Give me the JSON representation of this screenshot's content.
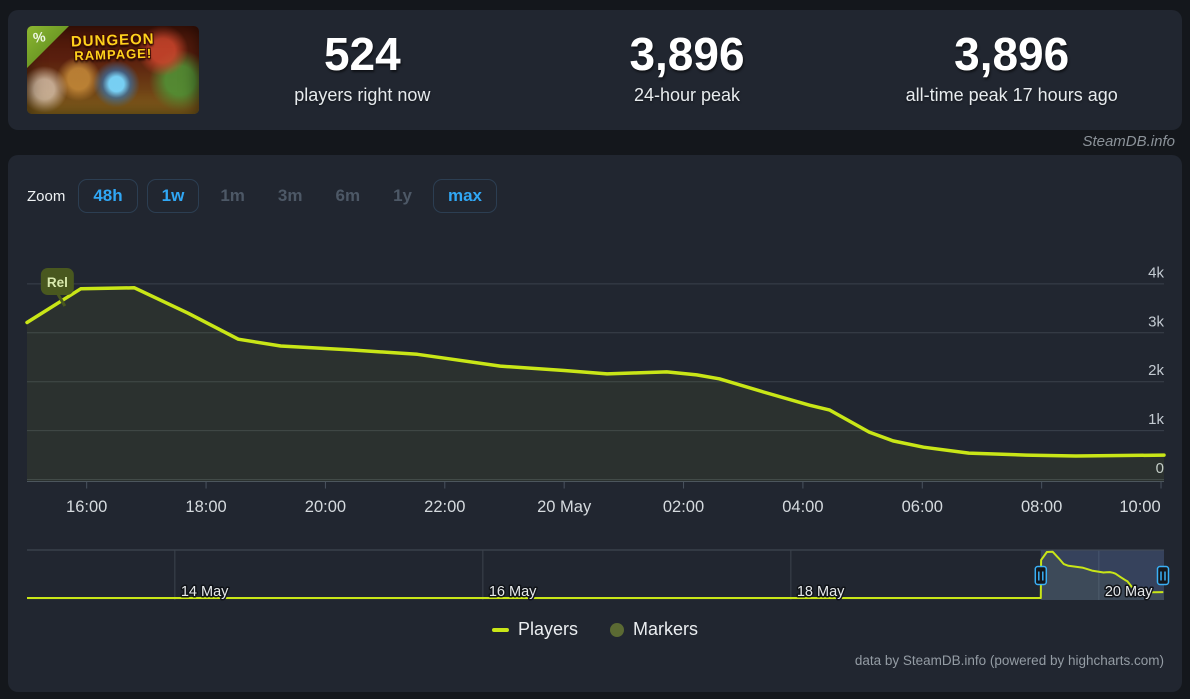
{
  "header": {
    "banner": {
      "title_line1": "DUNGEON",
      "title_line2": "RAMPAGE!",
      "corner_icon": "percent-icon",
      "corner_icon_glyph": "%"
    },
    "stats": [
      {
        "value": "524",
        "label": "players right now"
      },
      {
        "value": "3,896",
        "label": "24-hour peak"
      },
      {
        "value": "3,896",
        "label": "all-time peak 17 hours ago"
      }
    ]
  },
  "watermark": "SteamDB.info",
  "zoom": {
    "label": "Zoom",
    "buttons": [
      {
        "label": "48h",
        "enabled": true
      },
      {
        "label": "1w",
        "enabled": true
      },
      {
        "label": "1m",
        "enabled": false
      },
      {
        "label": "3m",
        "enabled": false
      },
      {
        "label": "6m",
        "enabled": false
      },
      {
        "label": "1y",
        "enabled": false
      },
      {
        "label": "max",
        "enabled": true
      }
    ]
  },
  "legend": {
    "items": [
      {
        "label": "Players",
        "swatch": "line",
        "color": "#c9e617"
      },
      {
        "label": "Markers",
        "swatch": "dot",
        "color": "#5b6a33"
      }
    ]
  },
  "credits": "data by SteamDB.info (powered by highcharts.com)",
  "chart_data": {
    "type": "line",
    "title": "Concurrent players",
    "x_unit": "hours relative to 20 May 00:00",
    "x_range": [
      -9,
      10.05
    ],
    "ylim": [
      0,
      4300
    ],
    "grid": true,
    "legend_position": "bottom",
    "series": [
      {
        "name": "Players",
        "color": "#c9e617",
        "points": [
          [
            -9.0,
            3210
          ],
          [
            -8.1,
            3900
          ],
          [
            -7.2,
            3920
          ],
          [
            -6.3,
            3400
          ],
          [
            -5.46,
            2870
          ],
          [
            -4.75,
            2730
          ],
          [
            -3.58,
            2650
          ],
          [
            -2.46,
            2560
          ],
          [
            -2.0,
            2480
          ],
          [
            -1.07,
            2320
          ],
          [
            0.0,
            2230
          ],
          [
            0.72,
            2160
          ],
          [
            1.22,
            2180
          ],
          [
            1.72,
            2200
          ],
          [
            2.22,
            2140
          ],
          [
            2.6,
            2060
          ],
          [
            3.34,
            1790
          ],
          [
            4.11,
            1520
          ],
          [
            4.45,
            1420
          ],
          [
            5.11,
            970
          ],
          [
            5.51,
            790
          ],
          [
            6.02,
            660
          ],
          [
            6.78,
            540
          ],
          [
            7.74,
            500
          ],
          [
            8.57,
            480
          ],
          [
            10.05,
            500
          ]
        ]
      }
    ],
    "yticks": [
      {
        "v": 0,
        "label": "0"
      },
      {
        "v": 1000,
        "label": "1k"
      },
      {
        "v": 2000,
        "label": "2k"
      },
      {
        "v": 3000,
        "label": "3k"
      },
      {
        "v": 4000,
        "label": "4k"
      }
    ],
    "xticks": [
      {
        "t": -8,
        "label": "16:00"
      },
      {
        "t": -6,
        "label": "18:00"
      },
      {
        "t": -4,
        "label": "20:00"
      },
      {
        "t": -2,
        "label": "22:00"
      },
      {
        "t": 0,
        "label": "20 May"
      },
      {
        "t": 2,
        "label": "02:00"
      },
      {
        "t": 4,
        "label": "04:00"
      },
      {
        "t": 6,
        "label": "06:00"
      },
      {
        "t": 8,
        "label": "08:00"
      },
      {
        "t": 10,
        "label": "10:00"
      }
    ],
    "release_marker": {
      "label": "Rel",
      "t": -8.5
    },
    "navigator": {
      "range_days": [
        -6.96,
        0.423
      ],
      "selected_days": [
        -0.377,
        0.423
      ],
      "release_day": -0.377,
      "ticks": [
        {
          "d": -6,
          "label": "14 May"
        },
        {
          "d": -4,
          "label": "16 May"
        },
        {
          "d": -2,
          "label": "18 May"
        },
        {
          "d": 0,
          "label": "20 May"
        }
      ]
    }
  }
}
